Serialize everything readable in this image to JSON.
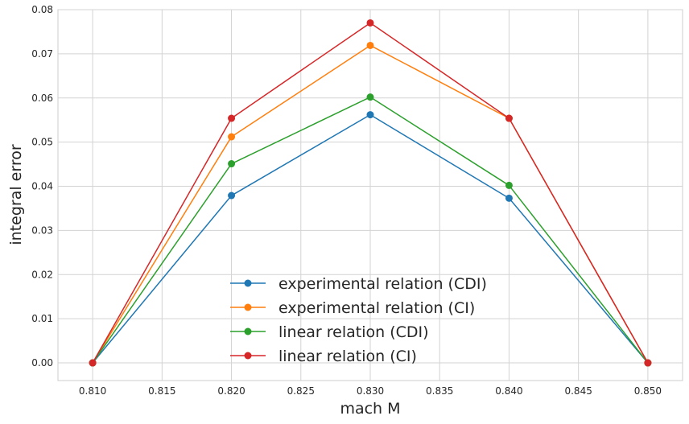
{
  "chart_data": {
    "type": "line",
    "title": "",
    "xlabel": "mach M",
    "ylabel": "integral error",
    "xlim": [
      0.8075,
      0.8525
    ],
    "ylim": [
      -0.004,
      0.08
    ],
    "xticks": [
      0.81,
      0.815,
      0.82,
      0.825,
      0.83,
      0.835,
      0.84,
      0.845,
      0.85
    ],
    "xtick_labels": [
      "0.810",
      "0.815",
      "0.820",
      "0.825",
      "0.830",
      "0.835",
      "0.840",
      "0.845",
      "0.850"
    ],
    "yticks": [
      0.0,
      0.01,
      0.02,
      0.03,
      0.04,
      0.05,
      0.06,
      0.07,
      0.08
    ],
    "ytick_labels": [
      "0.00",
      "0.01",
      "0.02",
      "0.03",
      "0.04",
      "0.05",
      "0.06",
      "0.07",
      "0.08"
    ],
    "grid": true,
    "legend_position": "lower-center",
    "x": [
      0.81,
      0.82,
      0.83,
      0.84,
      0.85
    ],
    "series": [
      {
        "name": "experimental relation (CDI)",
        "color": "#1f77b4",
        "values": [
          0.0,
          0.0379,
          0.0562,
          0.0373,
          0.0
        ]
      },
      {
        "name": "experimental relation (CI)",
        "color": "#ff7f0e",
        "values": [
          0.0,
          0.0512,
          0.0719,
          0.0554,
          0.0
        ]
      },
      {
        "name": "linear relation (CDI)",
        "color": "#2ca02c",
        "values": [
          0.0,
          0.0451,
          0.0602,
          0.0402,
          0.0
        ]
      },
      {
        "name": "linear relation (CI)",
        "color": "#d62728",
        "values": [
          0.0,
          0.0554,
          0.077,
          0.0554,
          0.0
        ]
      }
    ]
  }
}
